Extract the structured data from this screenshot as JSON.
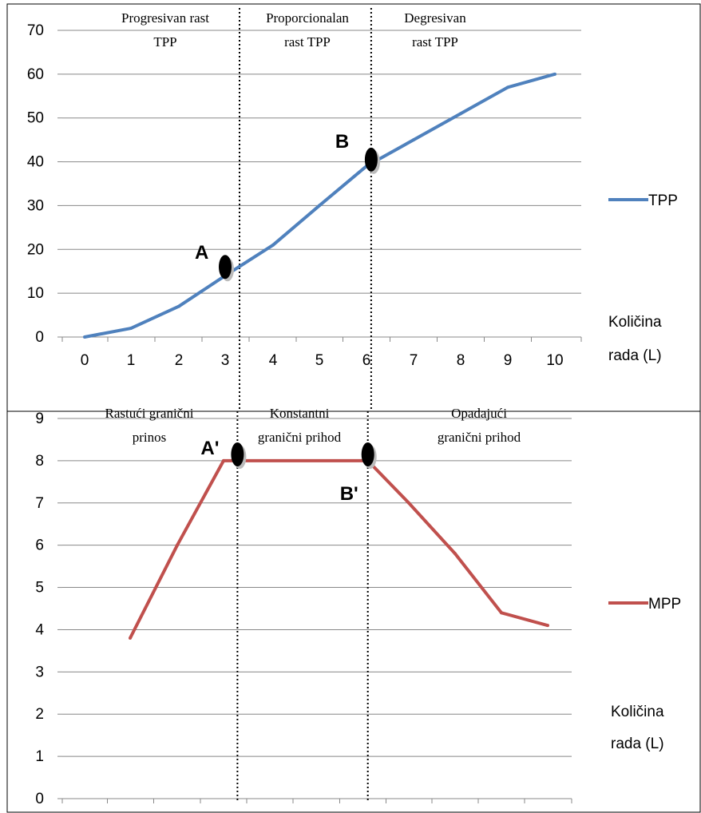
{
  "chart_data": [
    {
      "type": "line",
      "x": [
        0,
        1,
        2,
        3,
        4,
        5,
        6,
        7,
        8,
        9,
        10
      ],
      "series": [
        {
          "name": "TPP",
          "values": [
            0,
            2,
            7,
            14,
            21,
            30,
            39,
            45,
            51,
            57,
            60
          ]
        }
      ],
      "ylim": [
        0,
        70
      ],
      "yticks": [
        0,
        10,
        20,
        30,
        40,
        50,
        60,
        70
      ],
      "xticks": [
        "0",
        "1",
        "2",
        "3",
        "4",
        "5",
        "6",
        "7",
        "8",
        "9",
        "10"
      ],
      "xlabel_line1": "Količina",
      "xlabel_line2": "rada (L)",
      "grid": true,
      "legend_position": "right",
      "color": "#4f81bd",
      "region_labels": [
        {
          "line1": "Progresivan rast",
          "line2": "TPP"
        },
        {
          "line1": "Proporcionalan",
          "line2": "rast TPP"
        },
        {
          "line1": "Degresivan",
          "line2": "rast TPP"
        }
      ],
      "dividers_x": [
        3.3,
        6.1
      ],
      "points": [
        {
          "label": "A",
          "x": 3,
          "y": 16
        },
        {
          "label": "B",
          "x": 6.1,
          "y": 40.5
        }
      ]
    },
    {
      "type": "line",
      "x": [
        1,
        2,
        3,
        3.3,
        6.1,
        7,
        8,
        9,
        10
      ],
      "series": [
        {
          "name": "MPP",
          "values": [
            3.8,
            6,
            8,
            8,
            8,
            7,
            5.8,
            4.4,
            4.1
          ]
        }
      ],
      "ylim": [
        0,
        9
      ],
      "yticks": [
        0,
        1,
        2,
        3,
        4,
        5,
        6,
        7,
        8,
        9
      ],
      "xticks": [
        "0",
        "1",
        "2",
        "3",
        "4",
        "5",
        "6",
        "7",
        "8",
        "9",
        "10"
      ],
      "xlabel_line1": "Količina",
      "xlabel_line2": "rada (L)",
      "grid": true,
      "legend_position": "right",
      "color": "#c0504d",
      "region_labels": [
        {
          "line1": "Rastući granični",
          "line2": "prinos"
        },
        {
          "line1": "Konstantni",
          "line2": "granični prihod"
        },
        {
          "line1": "Opadajući",
          "line2": "granični prihod"
        }
      ],
      "dividers_x": [
        3.3,
        6.1
      ],
      "points": [
        {
          "label": "A'",
          "x": 3.3,
          "y": 8.15
        },
        {
          "label": "B'",
          "x": 6.1,
          "y": 8.15
        }
      ]
    }
  ]
}
